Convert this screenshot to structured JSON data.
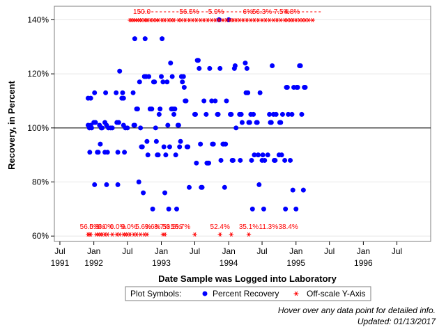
{
  "chart_data": {
    "type": "scatter",
    "xlabel": "Date Sample was Logged into Laboratory",
    "ylabel": "Recovery, in Percent",
    "xlim": [
      "1991-06-01",
      "1996-12-31"
    ],
    "ylim": [
      58,
      145
    ],
    "y_ticks": [
      60,
      80,
      100,
      120,
      140
    ],
    "y_tick_labels": [
      "60%",
      "80%",
      "100%",
      "120%",
      "140%"
    ],
    "x_ticks": [
      {
        "date": "1991-07-01",
        "month": "Jul",
        "year": "1991"
      },
      {
        "date": "1992-01-01",
        "month": "Jan",
        "year": "1992"
      },
      {
        "date": "1992-07-01",
        "month": "Jul",
        "year": ""
      },
      {
        "date": "1993-01-01",
        "month": "Jan",
        "year": "1993"
      },
      {
        "date": "1993-07-01",
        "month": "Jul",
        "year": ""
      },
      {
        "date": "1994-01-01",
        "month": "Jan",
        "year": "1994"
      },
      {
        "date": "1994-07-01",
        "month": "Jul",
        "year": ""
      },
      {
        "date": "1995-01-01",
        "month": "Jan",
        "year": "1995"
      },
      {
        "date": "1995-07-01",
        "month": "Jul",
        "year": ""
      },
      {
        "date": "1996-01-01",
        "month": "Jan",
        "year": "1996"
      },
      {
        "date": "1996-07-01",
        "month": "Jul",
        "year": ""
      }
    ],
    "reference_line": 100,
    "grid": true,
    "series": [
      {
        "name": "Percent Recovery",
        "marker": "circle",
        "color": "#0000ff",
        "points": [
          [
            "1991-12-01",
            111
          ],
          [
            "1991-12-15",
            111
          ],
          [
            "1991-12-01",
            101
          ],
          [
            "1991-12-15",
            101
          ],
          [
            "1991-12-08",
            100
          ],
          [
            "1991-12-20",
            100
          ],
          [
            "1991-12-10",
            91
          ],
          [
            "1992-01-01",
            102
          ],
          [
            "1992-01-05",
            113
          ],
          [
            "1992-01-10",
            102
          ],
          [
            "1992-01-05",
            79
          ],
          [
            "1992-01-20",
            91
          ],
          [
            "1992-01-25",
            91
          ],
          [
            "1992-02-01",
            101
          ],
          [
            "1992-02-10",
            100
          ],
          [
            "1992-02-05",
            94
          ],
          [
            "1992-02-15",
            100
          ],
          [
            "1992-03-01",
            102
          ],
          [
            "1992-03-05",
            113
          ],
          [
            "1992-03-10",
            101
          ],
          [
            "1992-03-01",
            91
          ],
          [
            "1992-03-15",
            91
          ],
          [
            "1992-03-10",
            79
          ],
          [
            "1992-03-20",
            100
          ],
          [
            "1992-04-01",
            100
          ],
          [
            "1992-04-10",
            100
          ],
          [
            "1992-05-01",
            113
          ],
          [
            "1992-05-05",
            102
          ],
          [
            "1992-05-15",
            102
          ],
          [
            "1992-05-10",
            91
          ],
          [
            "1992-05-10",
            79
          ],
          [
            "1992-05-20",
            121
          ],
          [
            "1992-06-01",
            111
          ],
          [
            "1992-06-05",
            113
          ],
          [
            "1992-06-10",
            111
          ],
          [
            "1992-06-10",
            101
          ],
          [
            "1992-06-15",
            91
          ],
          [
            "1992-06-20",
            100
          ],
          [
            "1992-07-01",
            100
          ],
          [
            "1992-08-01",
            113
          ],
          [
            "1992-08-05",
            101
          ],
          [
            "1992-08-10",
            101
          ],
          [
            "1992-08-10",
            133
          ],
          [
            "1992-08-20",
            107
          ],
          [
            "1992-08-25",
            107
          ],
          [
            "1992-09-01",
            80
          ],
          [
            "1992-09-05",
            117
          ],
          [
            "1992-09-10",
            100
          ],
          [
            "1992-09-15",
            93
          ],
          [
            "1992-09-20",
            93
          ],
          [
            "1992-09-25",
            76
          ],
          [
            "1992-10-01",
            119
          ],
          [
            "1992-10-05",
            133
          ],
          [
            "1992-10-10",
            119
          ],
          [
            "1992-10-15",
            95
          ],
          [
            "1992-10-20",
            90
          ],
          [
            "1992-10-25",
            119
          ],
          [
            "1992-11-01",
            107
          ],
          [
            "1992-11-10",
            107
          ],
          [
            "1992-11-15",
            70
          ],
          [
            "1992-11-20",
            117
          ],
          [
            "1992-11-25",
            117
          ],
          [
            "1992-12-01",
            100
          ],
          [
            "1992-12-05",
            95
          ],
          [
            "1992-12-10",
            90
          ],
          [
            "1992-12-15",
            90
          ],
          [
            "1992-12-20",
            105
          ],
          [
            "1992-12-25",
            107
          ],
          [
            "1993-01-01",
            119
          ],
          [
            "1993-01-05",
            133
          ],
          [
            "1993-01-10",
            117
          ],
          [
            "1993-01-15",
            93
          ],
          [
            "1993-01-20",
            76
          ],
          [
            "1993-01-25",
            90
          ],
          [
            "1993-02-01",
            117
          ],
          [
            "1993-02-05",
            101
          ],
          [
            "1993-02-10",
            70
          ],
          [
            "1993-02-15",
            93
          ],
          [
            "1993-02-20",
            124
          ],
          [
            "1993-02-25",
            107
          ],
          [
            "1993-03-01",
            119
          ],
          [
            "1993-03-05",
            107
          ],
          [
            "1993-03-10",
            105
          ],
          [
            "1993-03-15",
            107
          ],
          [
            "1993-03-20",
            90
          ],
          [
            "1993-03-25",
            70
          ],
          [
            "1993-04-01",
            101
          ],
          [
            "1993-04-05",
            101
          ],
          [
            "1993-04-10",
            93
          ],
          [
            "1993-04-15",
            95
          ],
          [
            "1993-04-20",
            119
          ],
          [
            "1993-04-25",
            117
          ],
          [
            "1993-05-01",
            119
          ],
          [
            "1993-05-05",
            115
          ],
          [
            "1993-05-10",
            110
          ],
          [
            "1993-05-15",
            110
          ],
          [
            "1993-05-20",
            93
          ],
          [
            "1993-05-25",
            93
          ],
          [
            "1993-06-01",
            78
          ],
          [
            "1993-07-01",
            105
          ],
          [
            "1993-07-05",
            105
          ],
          [
            "1993-07-10",
            87
          ],
          [
            "1993-07-15",
            125
          ],
          [
            "1993-07-20",
            125
          ],
          [
            "1993-07-25",
            122
          ],
          [
            "1993-08-01",
            94
          ],
          [
            "1993-08-05",
            78
          ],
          [
            "1993-08-10",
            78
          ],
          [
            "1993-08-20",
            110
          ],
          [
            "1993-09-01",
            105
          ],
          [
            "1993-09-05",
            87
          ],
          [
            "1993-09-10",
            87
          ],
          [
            "1993-09-15",
            87
          ],
          [
            "1993-09-20",
            122
          ],
          [
            "1993-10-01",
            110
          ],
          [
            "1993-10-05",
            94
          ],
          [
            "1993-10-10",
            94
          ],
          [
            "1993-10-20",
            110
          ],
          [
            "1993-11-01",
            105
          ],
          [
            "1993-11-05",
            105
          ],
          [
            "1993-11-10",
            140
          ],
          [
            "1993-11-15",
            122
          ],
          [
            "1993-11-20",
            88
          ],
          [
            "1993-12-01",
            94
          ],
          [
            "1993-12-05",
            94
          ],
          [
            "1993-12-10",
            78
          ],
          [
            "1993-12-15",
            94
          ],
          [
            "1993-12-20",
            110
          ],
          [
            "1994-01-01",
            140
          ],
          [
            "1994-01-10",
            105
          ],
          [
            "1994-01-15",
            105
          ],
          [
            "1994-01-20",
            88
          ],
          [
            "1994-01-25",
            88
          ],
          [
            "1994-02-01",
            122
          ],
          [
            "1994-02-05",
            123
          ],
          [
            "1994-02-10",
            100
          ],
          [
            "1994-03-01",
            105
          ],
          [
            "1994-03-05",
            88
          ],
          [
            "1994-03-10",
            105
          ],
          [
            "1994-03-15",
            102
          ],
          [
            "1994-04-01",
            124
          ],
          [
            "1994-04-05",
            113
          ],
          [
            "1994-04-10",
            122
          ],
          [
            "1994-04-15",
            113
          ],
          [
            "1994-04-20",
            102
          ],
          [
            "1994-04-25",
            102
          ],
          [
            "1994-05-01",
            105
          ],
          [
            "1994-05-05",
            88
          ],
          [
            "1994-05-10",
            70
          ],
          [
            "1994-05-15",
            105
          ],
          [
            "1994-05-20",
            90
          ],
          [
            "1994-06-01",
            102
          ],
          [
            "1994-06-05",
            102
          ],
          [
            "1994-06-10",
            90
          ],
          [
            "1994-06-15",
            79
          ],
          [
            "1994-06-20",
            113
          ],
          [
            "1994-07-01",
            88
          ],
          [
            "1994-07-05",
            90
          ],
          [
            "1994-07-10",
            70
          ],
          [
            "1994-07-15",
            88
          ],
          [
            "1994-08-01",
            90
          ],
          [
            "1994-08-10",
            105
          ],
          [
            "1994-08-15",
            102
          ],
          [
            "1994-08-20",
            102
          ],
          [
            "1994-08-25",
            123
          ],
          [
            "1994-09-01",
            105
          ],
          [
            "1994-09-05",
            88
          ],
          [
            "1994-09-10",
            88
          ],
          [
            "1994-09-15",
            105
          ],
          [
            "1994-10-01",
            90
          ],
          [
            "1994-10-05",
            102
          ],
          [
            "1994-10-10",
            102
          ],
          [
            "1994-10-15",
            90
          ],
          [
            "1994-10-20",
            105
          ],
          [
            "1994-11-01",
            88
          ],
          [
            "1994-11-05",
            70
          ],
          [
            "1994-11-10",
            115
          ],
          [
            "1994-11-15",
            115
          ],
          [
            "1994-11-20",
            105
          ],
          [
            "1994-12-01",
            88
          ],
          [
            "1994-12-10",
            105
          ],
          [
            "1994-12-15",
            77
          ],
          [
            "1994-12-20",
            115
          ],
          [
            "1995-01-01",
            70
          ],
          [
            "1995-01-05",
            115
          ],
          [
            "1995-01-10",
            115
          ],
          [
            "1995-01-20",
            123
          ],
          [
            "1995-01-25",
            123
          ],
          [
            "1995-02-01",
            105
          ],
          [
            "1995-02-10",
            77
          ],
          [
            "1995-02-15",
            115
          ],
          [
            "1995-02-20",
            115
          ]
        ]
      },
      {
        "name": "Off-scale Y-Axis",
        "marker": "asterisk",
        "color": "#ff0000",
        "top_points": [
          "1992-07-15",
          "1992-07-25",
          "1992-08-05",
          "1992-08-15",
          "1992-08-25",
          "1992-09-05",
          "1992-09-15",
          "1992-10-01",
          "1992-10-10",
          "1992-10-20",
          "1992-11-05",
          "1992-11-20",
          "1992-12-05",
          "1992-12-15",
          "1993-01-05",
          "1993-01-20",
          "1993-02-10",
          "1993-02-25",
          "1993-03-10",
          "1993-04-05",
          "1993-04-20",
          "1993-05-10",
          "1993-06-01",
          "1993-06-20",
          "1993-07-10",
          "1993-08-01",
          "1993-08-20",
          "1993-09-10",
          "1993-10-01",
          "1993-10-20",
          "1993-11-10",
          "1993-12-01",
          "1993-12-20",
          "1994-01-10",
          "1994-01-25",
          "1994-02-10",
          "1994-03-01",
          "1994-03-20",
          "1994-04-10",
          "1994-05-01",
          "1994-05-20",
          "1994-06-10",
          "1994-07-01",
          "1994-07-20",
          "1994-08-10",
          "1994-09-01",
          "1994-09-20",
          "1994-10-10",
          "1994-11-01",
          "1994-11-15",
          "1994-12-01",
          "1994-12-15",
          "1995-01-01",
          "1995-01-20",
          "1995-02-05",
          "1995-02-20",
          "1995-03-10",
          "1995-04-01"
        ],
        "bottom_points": [
          "1991-12-01",
          "1991-12-08",
          "1991-12-15",
          "1992-01-15",
          "1992-01-25",
          "1992-02-05",
          "1992-02-15",
          "1992-03-01",
          "1992-03-15",
          "1992-04-10",
          "1992-05-05",
          "1992-05-20",
          "1992-06-10",
          "1992-06-20",
          "1992-07-01",
          "1992-07-15",
          "1992-08-05",
          "1992-08-20",
          "1992-09-10",
          "1992-10-01",
          "1992-10-15",
          "1993-01-10",
          "1993-01-20",
          "1993-07-01",
          "1993-11-15",
          "1994-01-15",
          "1994-04-20"
        ],
        "top_text": "150.0",
        "top_labels": [
          {
            "date": "1993-06-01",
            "text": "56.5%"
          },
          {
            "date": "1993-10-25",
            "text": "5.9%"
          },
          {
            "date": "1994-04-15",
            "text": "6%"
          },
          {
            "date": "1994-07-01",
            "text": "56.3%"
          },
          {
            "date": "1994-10-15",
            "text": "7.5%"
          },
          {
            "date": "1994-12-10",
            "text": "4.8%"
          }
        ],
        "bottom_labels": [
          {
            "date": "1991-12-10",
            "text": "56.0%"
          },
          {
            "date": "1992-01-20",
            "text": "5.8%"
          },
          {
            "date": "1992-03-05",
            "text": "0.0%"
          },
          {
            "date": "1992-05-10",
            "text": "0.0%"
          },
          {
            "date": "1992-07-10",
            "text": "9.0%"
          },
          {
            "date": "1992-09-25",
            "text": "5.6%"
          },
          {
            "date": "1992-11-15",
            "text": "9.6%"
          },
          {
            "date": "1993-01-05",
            "text": "8.7%"
          },
          {
            "date": "1993-03-01",
            "text": "53.5%"
          },
          {
            "date": "1993-04-15",
            "text": "56.7%"
          },
          {
            "date": "1993-11-15",
            "text": "52.4%"
          },
          {
            "date": "1994-04-20",
            "text": "35.1%"
          },
          {
            "date": "1994-08-05",
            "text": "11.3%"
          },
          {
            "date": "1994-11-20",
            "text": "38.4%"
          }
        ]
      }
    ]
  },
  "legend": {
    "title": "Plot Symbols:",
    "items": [
      {
        "label": "Percent Recovery",
        "symbol": "circle",
        "color": "#0000ff"
      },
      {
        "label": "Off-scale Y-Axis",
        "symbol": "asterisk",
        "color": "#ff0000"
      }
    ]
  },
  "footnotes": {
    "hover": "Hover over any data point for detailed info.",
    "updated": "Updated: 01/13/2017"
  }
}
